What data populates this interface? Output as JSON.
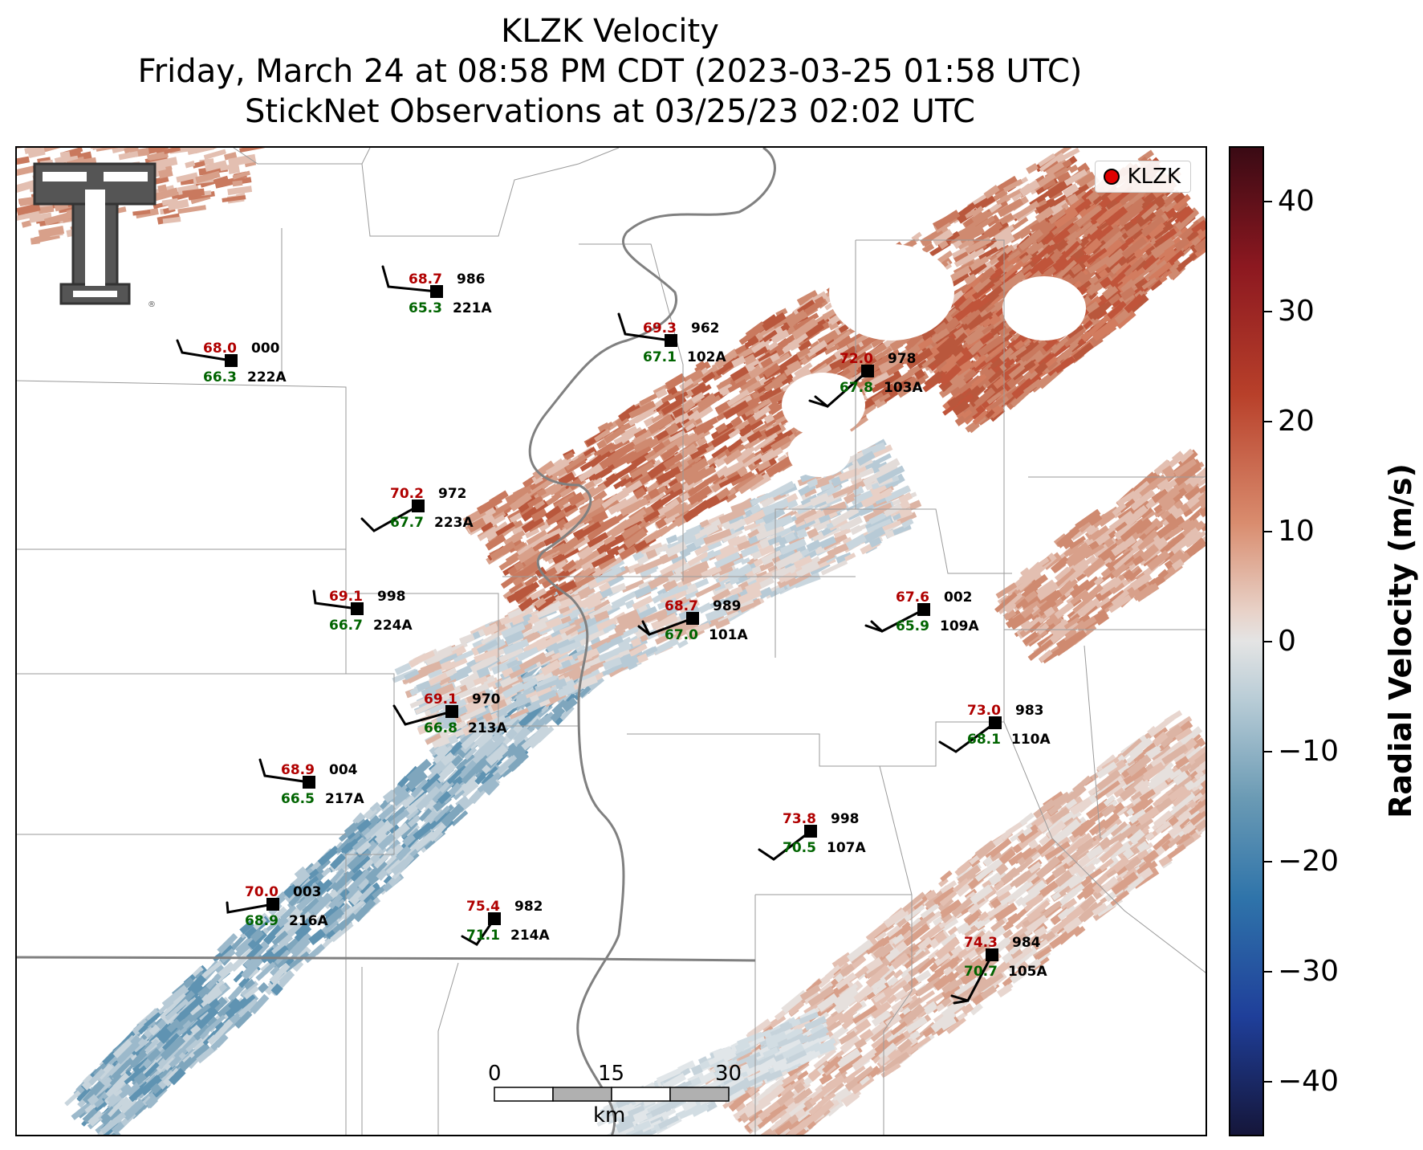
{
  "title": {
    "line1": "KLZK Velocity",
    "line2": "Friday, March 24 at 08:58 PM CDT (2023-03-25 01:58 UTC)",
    "line3": "StickNet Observations at 03/25/23 02:02 UTC"
  },
  "legend": {
    "label": "KLZK",
    "marker_color": "#e00000"
  },
  "colorbar": {
    "label": "Radial Velocity (m/s)",
    "ticks": [
      "40",
      "30",
      "20",
      "10",
      "0",
      "−10",
      "−20",
      "−30",
      "−40"
    ],
    "tick_values": [
      40,
      30,
      20,
      10,
      0,
      -10,
      -20,
      -30,
      -40
    ],
    "range": [
      -45,
      45
    ],
    "colors": {
      "max": "#3a0a14",
      "high": "#b8402a",
      "zero": "#e4e4e4",
      "low": "#2f74aa",
      "min": "#15163a"
    }
  },
  "scalebar": {
    "ticks": [
      "0",
      "15",
      "30"
    ],
    "unit": "km"
  },
  "logo": {
    "name": "texas-tech-double-t-logo",
    "text": "TT"
  },
  "stations": [
    {
      "id": "221A",
      "temp": "68.7",
      "dew": "65.3",
      "pres": "986"
    },
    {
      "id": "222A",
      "temp": "68.0",
      "dew": "66.3",
      "pres": "000"
    },
    {
      "id": "102A",
      "temp": "69.3",
      "dew": "67.1",
      "pres": "962"
    },
    {
      "id": "103A",
      "temp": "72.0",
      "dew": "67.8",
      "pres": "978"
    },
    {
      "id": "223A",
      "temp": "70.2",
      "dew": "67.7",
      "pres": "972"
    },
    {
      "id": "224A",
      "temp": "69.1",
      "dew": "66.7",
      "pres": "998"
    },
    {
      "id": "101A",
      "temp": "68.7",
      "dew": "67.0",
      "pres": "989"
    },
    {
      "id": "109A",
      "temp": "67.6",
      "dew": "65.9",
      "pres": "002"
    },
    {
      "id": "213A",
      "temp": "69.1",
      "dew": "66.8",
      "pres": "970"
    },
    {
      "id": "110A",
      "temp": "73.0",
      "dew": "68.1",
      "pres": "983"
    },
    {
      "id": "217A",
      "temp": "68.9",
      "dew": "66.5",
      "pres": "004"
    },
    {
      "id": "107A",
      "temp": "73.8",
      "dew": "70.5",
      "pres": "998"
    },
    {
      "id": "216A",
      "temp": "70.0",
      "dew": "68.9",
      "pres": "003"
    },
    {
      "id": "214A",
      "temp": "75.4",
      "dew": "71.1",
      "pres": "982"
    },
    {
      "id": "105A",
      "temp": "74.3",
      "dew": "70.7",
      "pres": "984"
    }
  ]
}
